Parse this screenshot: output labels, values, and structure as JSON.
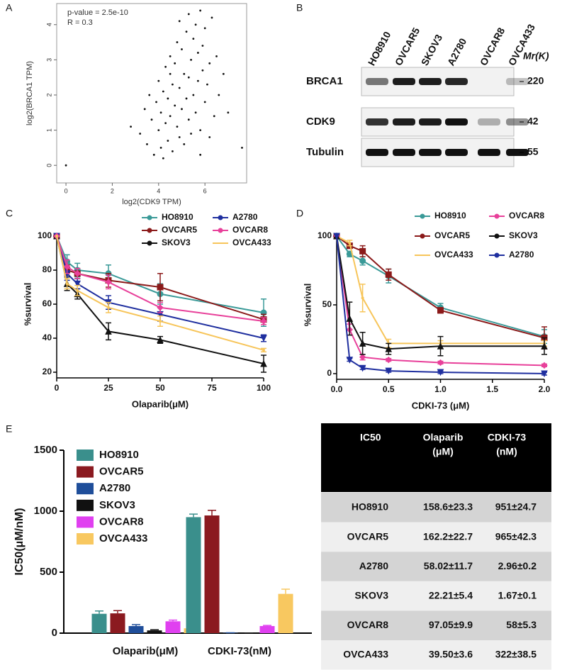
{
  "chart_data": [
    {
      "type": "scatter",
      "panel": "A",
      "xlabel": "log2(CDK9 TPM)",
      "ylabel": "log2(BRCA1 TPM)",
      "annotations": [
        "p-value = 2.5e-10",
        "R = 0.3"
      ],
      "x": [
        0,
        2.8,
        3.2,
        3.4,
        3.5,
        3.6,
        3.7,
        3.8,
        3.9,
        4.0,
        4.0,
        4.1,
        4.1,
        4.2,
        4.2,
        4.3,
        4.3,
        4.4,
        4.4,
        4.5,
        4.5,
        4.6,
        4.6,
        4.7,
        4.7,
        4.8,
        4.8,
        4.9,
        4.9,
        5.0,
        5.0,
        5.1,
        5.1,
        5.2,
        5.2,
        5.3,
        5.3,
        5.4,
        5.4,
        5.5,
        5.5,
        5.6,
        5.6,
        5.7,
        5.7,
        5.8,
        5.8,
        5.9,
        5.9,
        6.0,
        6.0,
        6.1,
        6.2,
        6.3,
        6.4,
        6.5,
        6.6,
        6.8,
        7.0,
        7.6,
        5.3,
        4.5,
        5.8,
        4.9,
        6.2
      ],
      "y": [
        0,
        1.1,
        0.9,
        1.6,
        0.6,
        2.0,
        1.3,
        0.3,
        1.8,
        1.0,
        2.4,
        0.5,
        1.5,
        2.1,
        0.2,
        1.2,
        2.8,
        0.7,
        1.9,
        1.4,
        3.1,
        0.4,
        2.3,
        1.7,
        2.9,
        1.1,
        3.5,
        0.8,
        2.2,
        1.6,
        3.3,
        0.6,
        2.6,
        1.9,
        3.8,
        1.3,
        2.5,
        0.9,
        3.0,
        2.0,
        3.6,
        1.5,
        4.0,
        2.4,
        3.2,
        1.0,
        4.4,
        2.7,
        3.4,
        1.8,
        3.9,
        2.3,
        2.9,
        4.2,
        1.4,
        3.1,
        2.0,
        2.6,
        1.5,
        0.5,
        4.3,
        2.6,
        0.3,
        4.1,
        0.8
      ],
      "color": "#111111",
      "xlim": [
        -0.4,
        7.8
      ],
      "xticks": [
        0,
        2,
        4,
        6
      ],
      "ylim": [
        -0.5,
        4.6
      ],
      "yticks": [
        0,
        1,
        2,
        3,
        4
      ]
    },
    {
      "type": "line",
      "panel": "C",
      "xlabel": "Olaparib(μM)",
      "ylabel": "%survival",
      "x": [
        0,
        5,
        10,
        25,
        50,
        100
      ],
      "series": [
        {
          "name": "HO8910",
          "color": "#3a9a98",
          "marker": "circle",
          "values": [
            100,
            85,
            80,
            78,
            66,
            55
          ],
          "errors": [
            0,
            4,
            4,
            5,
            6,
            8
          ]
        },
        {
          "name": "OVCAR5",
          "color": "#8b1a1a",
          "marker": "square",
          "values": [
            100,
            80,
            78,
            74,
            70,
            51
          ],
          "errors": [
            0,
            3,
            3,
            4,
            8,
            3
          ]
        },
        {
          "name": "SKOV3",
          "color": "#111111",
          "marker": "triangle",
          "values": [
            100,
            72,
            66,
            44,
            39,
            25
          ],
          "errors": [
            0,
            4,
            3,
            5,
            2,
            5
          ]
        },
        {
          "name": "A2780",
          "color": "#1f2f9f",
          "marker": "triangle-down",
          "values": [
            100,
            78,
            72,
            61,
            54,
            40
          ],
          "errors": [
            0,
            4,
            3,
            4,
            4,
            2
          ]
        },
        {
          "name": "OVCAR8",
          "color": "#e8409a",
          "marker": "diamond",
          "values": [
            100,
            82,
            78,
            73,
            58,
            50
          ],
          "errors": [
            0,
            4,
            3,
            4,
            3,
            2
          ]
        },
        {
          "name": "OVCA433",
          "color": "#f7c55a",
          "marker": "none",
          "values": [
            100,
            72,
            68,
            58,
            50,
            33
          ],
          "errors": [
            0,
            3,
            3,
            3,
            3,
            1
          ]
        }
      ],
      "xlim": [
        0,
        100
      ],
      "xticks": [
        0,
        25,
        50,
        75,
        100
      ],
      "ylim": [
        20,
        100
      ],
      "yticks": [
        20,
        40,
        60,
        80,
        100
      ]
    },
    {
      "type": "line",
      "panel": "D",
      "xlabel": "CDKI-73 (μM)",
      "ylabel": "%survival",
      "x": [
        0,
        0.125,
        0.25,
        0.5,
        1,
        2
      ],
      "series": [
        {
          "name": "HO8910",
          "color": "#3a9a98",
          "marker": "circle",
          "values": [
            100,
            87,
            82,
            71,
            48,
            27
          ],
          "errors": [
            0,
            2,
            3,
            5,
            3,
            5
          ]
        },
        {
          "name": "OVCAR5",
          "color": "#8b1a1a",
          "marker": "square",
          "values": [
            100,
            93,
            89,
            72,
            46,
            26
          ],
          "errors": [
            0,
            2,
            4,
            4,
            2,
            8
          ]
        },
        {
          "name": "OVCA433",
          "color": "#f7c55a",
          "marker": "none",
          "values": [
            100,
            95,
            55,
            22,
            22,
            22
          ],
          "errors": [
            0,
            2,
            10,
            3,
            2,
            2
          ]
        },
        {
          "name": "OVCAR8",
          "color": "#e8409a",
          "marker": "diamond",
          "values": [
            100,
            32,
            12,
            10,
            8,
            6
          ],
          "errors": [
            0,
            4,
            2,
            1,
            1,
            1
          ]
        },
        {
          "name": "SKOV3",
          "color": "#111111",
          "marker": "triangle",
          "values": [
            100,
            40,
            22,
            18,
            20,
            20
          ],
          "errors": [
            0,
            12,
            8,
            4,
            7,
            6
          ]
        },
        {
          "name": "A2780",
          "color": "#1f2f9f",
          "marker": "triangle-down",
          "values": [
            100,
            10,
            4,
            2,
            1,
            0
          ],
          "errors": [
            0,
            1,
            1,
            1,
            1,
            1
          ]
        }
      ],
      "xlim": [
        0,
        2
      ],
      "xticks": [
        {
          "value": 0,
          "label": "0.0"
        },
        {
          "value": 0.5,
          "label": "0.5"
        },
        {
          "value": 1,
          "label": "1.0"
        },
        {
          "value": 1.5,
          "label": "1.5"
        },
        {
          "value": 2,
          "label": "2.0"
        }
      ],
      "ylim": [
        0,
        100
      ],
      "yticks": [
        0,
        50,
        100
      ]
    },
    {
      "type": "bar",
      "panel": "E",
      "ylabel": "IC50(μM/nM)",
      "categories": [
        "Olaparib(μM)",
        "CDKI-73(nM)"
      ],
      "series": [
        {
          "name": "HO8910",
          "color": "#3a8f8c",
          "values": [
            158.6,
            951
          ],
          "errors": [
            23.3,
            24.7
          ]
        },
        {
          "name": "OVCAR5",
          "color": "#8b1a20",
          "values": [
            162.2,
            965
          ],
          "errors": [
            22.7,
            42.3
          ]
        },
        {
          "name": "A2780",
          "color": "#1f4e9a",
          "values": [
            58.02,
            2.96
          ],
          "errors": [
            11.7,
            0.2
          ]
        },
        {
          "name": "SKOV3",
          "color": "#111111",
          "values": [
            22.21,
            1.67
          ],
          "errors": [
            5.4,
            0.1
          ]
        },
        {
          "name": "OVCAR8",
          "color": "#e040f0",
          "values": [
            97.05,
            58
          ],
          "errors": [
            9.9,
            5.3
          ]
        },
        {
          "name": "OVCA433",
          "color": "#f8c860",
          "values": [
            39.5,
            322
          ],
          "errors": [
            3.6,
            38.5
          ]
        }
      ],
      "ylim": [
        0,
        1500
      ],
      "yticks": [
        0,
        500,
        1000,
        1500
      ]
    }
  ],
  "blot": {
    "panel": "B",
    "lanes": [
      "HO8910",
      "OVCAR5",
      "SKOV3",
      "A2780",
      "OVCAR8",
      "OVCA433"
    ],
    "rows": [
      "BRCA1",
      "CDK9",
      "Tubulin"
    ],
    "mw_header": "Mr(K)",
    "mw": [
      "220",
      "42",
      "55"
    ]
  },
  "table": {
    "header": [
      [
        "IC50"
      ],
      [
        "Olaparib",
        "(μM)"
      ],
      [
        "CDKI-73",
        "(nM)"
      ]
    ],
    "rows": [
      [
        "HO8910",
        "158.6±23.3",
        "951±24.7"
      ],
      [
        "OVCAR5",
        "162.2±22.7",
        "965±42.3"
      ],
      [
        "A2780",
        "58.02±11.7",
        "2.96±0.2"
      ],
      [
        "SKOV3",
        "22.21±5.4",
        "1.67±0.1"
      ],
      [
        "OVCAR8",
        "97.05±9.9",
        "58±5.3"
      ],
      [
        "OVCA433",
        "39.50±3.6",
        "322±38.5"
      ]
    ]
  }
}
